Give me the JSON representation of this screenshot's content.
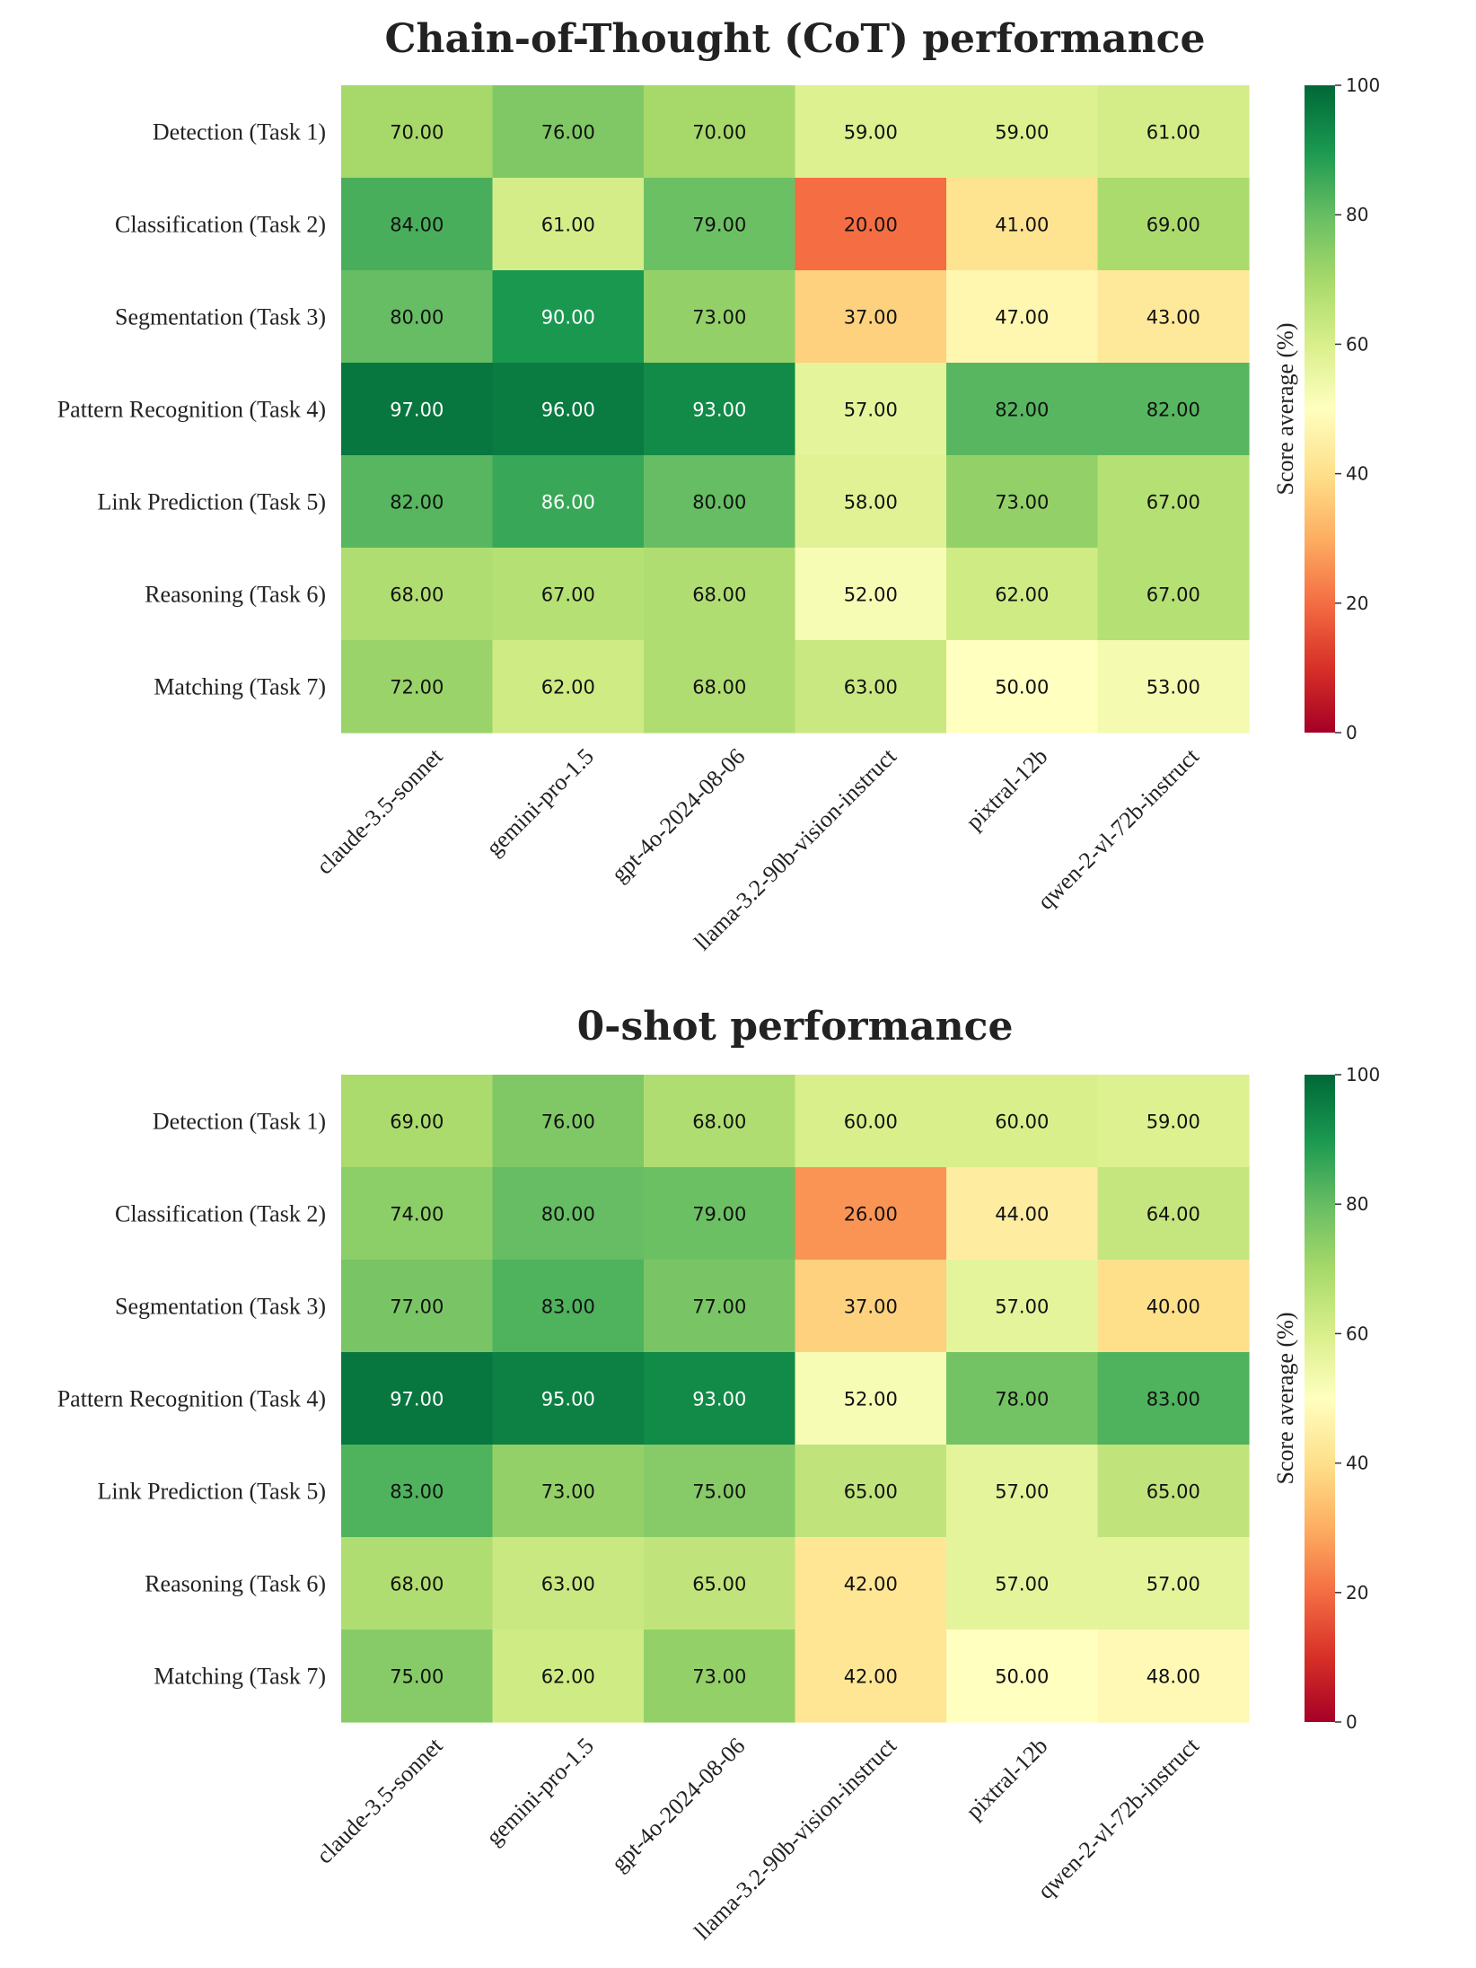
{
  "chart_data": [
    {
      "type": "heatmap",
      "title": "Chain-of-Thought (CoT) performance",
      "rows": [
        "Detection (Task 1)",
        "Classification (Task 2)",
        "Segmentation (Task 3)",
        "Pattern Recognition (Task 4)",
        "Link Prediction (Task 5)",
        "Reasoning (Task 6)",
        "Matching (Task 7)"
      ],
      "columns": [
        "claude-3.5-sonnet",
        "gemini-pro-1.5",
        "gpt-4o-2024-08-06",
        "llama-3.2-90b-vision-instruct",
        "pixtral-12b",
        "qwen-2-vl-72b-instruct"
      ],
      "values": [
        [
          70,
          76,
          70,
          59,
          59,
          61
        ],
        [
          84,
          61,
          79,
          20,
          41,
          69
        ],
        [
          80,
          90,
          73,
          37,
          47,
          43
        ],
        [
          97,
          96,
          93,
          57,
          82,
          82
        ],
        [
          82,
          86,
          80,
          58,
          73,
          67
        ],
        [
          68,
          67,
          68,
          52,
          62,
          67
        ],
        [
          72,
          62,
          68,
          63,
          50,
          53
        ]
      ],
      "value_format": "0.00",
      "colormap": "RdYlGn",
      "colorbar": {
        "label": "Score average (%)",
        "range": [
          0,
          100
        ],
        "ticks": [
          "0",
          "20",
          "40",
          "60",
          "80",
          "100"
        ]
      }
    },
    {
      "type": "heatmap",
      "title": "0-shot performance",
      "rows": [
        "Detection (Task 1)",
        "Classification (Task 2)",
        "Segmentation (Task 3)",
        "Pattern Recognition (Task 4)",
        "Link Prediction (Task 5)",
        "Reasoning (Task 6)",
        "Matching (Task 7)"
      ],
      "columns": [
        "claude-3.5-sonnet",
        "gemini-pro-1.5",
        "gpt-4o-2024-08-06",
        "llama-3.2-90b-vision-instruct",
        "pixtral-12b",
        "qwen-2-vl-72b-instruct"
      ],
      "values": [
        [
          69,
          76,
          68,
          60,
          60,
          59
        ],
        [
          74,
          80,
          79,
          26,
          44,
          64
        ],
        [
          77,
          83,
          77,
          37,
          57,
          40
        ],
        [
          97,
          95,
          93,
          52,
          78,
          83
        ],
        [
          83,
          73,
          75,
          65,
          57,
          65
        ],
        [
          68,
          63,
          65,
          42,
          57,
          57
        ],
        [
          75,
          62,
          73,
          42,
          50,
          48
        ]
      ],
      "value_format": "0.00",
      "colormap": "RdYlGn",
      "colorbar": {
        "label": "Score average (%)",
        "range": [
          0,
          100
        ],
        "ticks": [
          "0",
          "20",
          "40",
          "60",
          "80",
          "100"
        ]
      }
    }
  ],
  "colormap_stops": [
    "#a50026",
    "#d73027",
    "#f46d43",
    "#fdae61",
    "#fee08b",
    "#ffffbf",
    "#d9ef8b",
    "#a6d96a",
    "#66bd63",
    "#1a9850",
    "#006837"
  ]
}
